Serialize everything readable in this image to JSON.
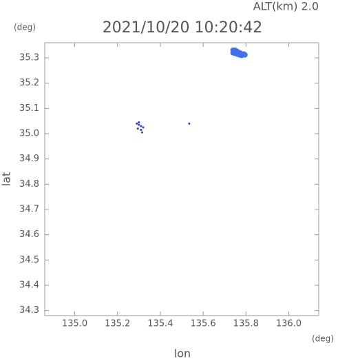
{
  "chart_data": {
    "type": "scatter",
    "title": "2021/10/20 10:20:42",
    "annotation": "ALT(km) 2.0",
    "y_unit": "(deg)",
    "x_unit": "(deg)",
    "x_label": "lon",
    "y_label": "lat",
    "xlim": [
      134.86,
      136.14
    ],
    "ylim": [
      34.28,
      35.36
    ],
    "xticks": [
      {
        "value": 135.0,
        "label": "135.0"
      },
      135.2,
      135.4,
      135.6,
      135.8,
      {
        "value": 136.0,
        "label": "136.0"
      }
    ],
    "yticks": [
      34.3,
      34.4,
      34.5,
      34.6,
      34.7,
      34.8,
      34.9,
      {
        "value": 35.0,
        "label": "35.0"
      },
      35.1,
      35.2,
      35.3
    ],
    "series": [
      {
        "color": "#3f6ff0",
        "marker_size": 4,
        "x": [
          135.74,
          135.75,
          135.76,
          135.77,
          135.78,
          135.79,
          135.795,
          135.74,
          135.75,
          135.76,
          135.77,
          135.78,
          135.745,
          135.755,
          135.765,
          135.775,
          135.785
        ],
        "values": [
          35.33,
          35.33,
          35.325,
          35.32,
          35.315,
          35.315,
          35.312,
          35.32,
          35.318,
          35.315,
          35.312,
          35.31,
          35.325,
          35.322,
          35.32,
          35.318,
          35.312
        ]
      },
      {
        "color": "#2a3bd0",
        "marker_size": 1.5,
        "x": [
          135.29,
          135.3,
          135.31,
          135.32,
          135.295,
          135.31,
          135.315,
          135.3,
          135.535
        ],
        "values": [
          35.04,
          35.035,
          35.03,
          35.025,
          35.02,
          35.015,
          35.005,
          35.045,
          35.04
        ]
      }
    ]
  }
}
